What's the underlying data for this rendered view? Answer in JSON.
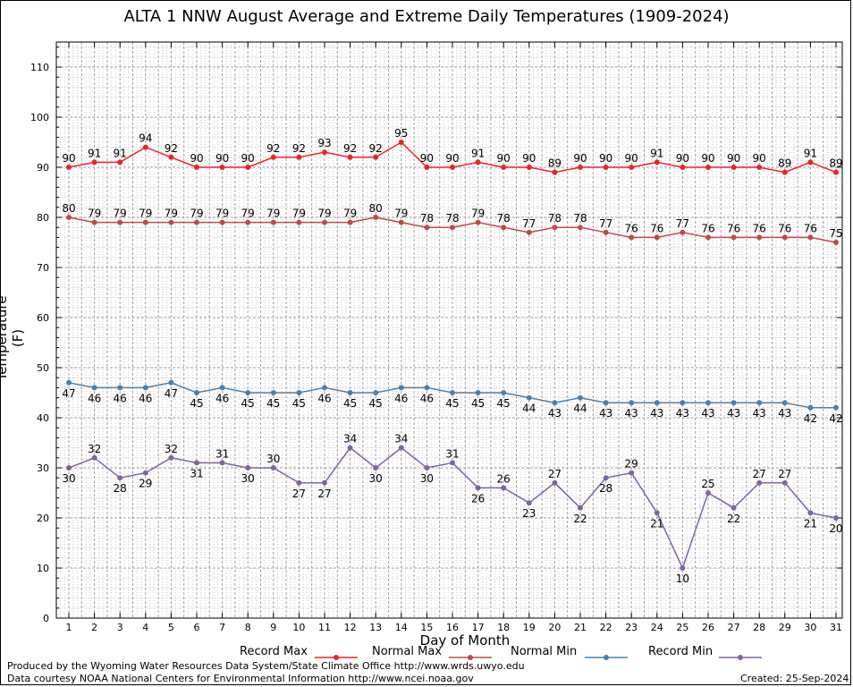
{
  "chart_data": {
    "type": "line",
    "title": "ALTA 1 NNW August Average and Extreme Daily Temperatures (1909-2024)",
    "xlabel": "Day of Month",
    "ylabel": "Temperature (F)",
    "ylim": [
      0,
      115
    ],
    "yticks": [
      0,
      10,
      20,
      30,
      40,
      50,
      60,
      70,
      80,
      90,
      100,
      110
    ],
    "grid": true,
    "x": [
      1,
      2,
      3,
      4,
      5,
      6,
      7,
      8,
      9,
      10,
      11,
      12,
      13,
      14,
      15,
      16,
      17,
      18,
      19,
      20,
      21,
      22,
      23,
      24,
      25,
      26,
      27,
      28,
      29,
      30,
      31
    ],
    "series": [
      {
        "name": "Record Max",
        "color": "#ee2222",
        "values": [
          90,
          91,
          91,
          94,
          92,
          90,
          90,
          90,
          92,
          92,
          93,
          92,
          92,
          95,
          90,
          90,
          91,
          90,
          90,
          89,
          90,
          90,
          90,
          91,
          90,
          90,
          90,
          90,
          89,
          91,
          89
        ]
      },
      {
        "name": "Normal Max",
        "color": "#c24848",
        "values": [
          80,
          79,
          79,
          79,
          79,
          79,
          79,
          79,
          79,
          79,
          79,
          79,
          80,
          79,
          78,
          78,
          79,
          78,
          77,
          78,
          78,
          77,
          76,
          76,
          77,
          76,
          76,
          76,
          76,
          76,
          75
        ]
      },
      {
        "name": "Normal Min",
        "color": "#4682b4",
        "values": [
          47,
          46,
          46,
          46,
          47,
          45,
          46,
          45,
          45,
          45,
          46,
          45,
          45,
          46,
          46,
          45,
          45,
          45,
          44,
          43,
          44,
          43,
          43,
          43,
          43,
          43,
          43,
          43,
          43,
          42,
          42
        ]
      },
      {
        "name": "Record Min",
        "color": "#8064a2",
        "values": [
          30,
          32,
          28,
          29,
          32,
          31,
          31,
          30,
          30,
          27,
          27,
          34,
          30,
          34,
          30,
          31,
          26,
          26,
          23,
          27,
          22,
          28,
          29,
          21,
          10,
          25,
          22,
          27,
          27,
          21,
          20
        ]
      }
    ]
  },
  "legend": {
    "record_max": "Record Max",
    "normal_max": "Normal Max",
    "normal_min": "Normal Min",
    "record_min": "Record Min"
  },
  "footer": {
    "line1": "Produced by the Wyoming Water Resources Data System/State Climate Office http://www.wrds.uwyo.edu",
    "line2": "Data courtesy NOAA National Centers for Environmental Information http://www.ncei.noaa.gov",
    "created": "Created: 25-Sep-2024"
  }
}
